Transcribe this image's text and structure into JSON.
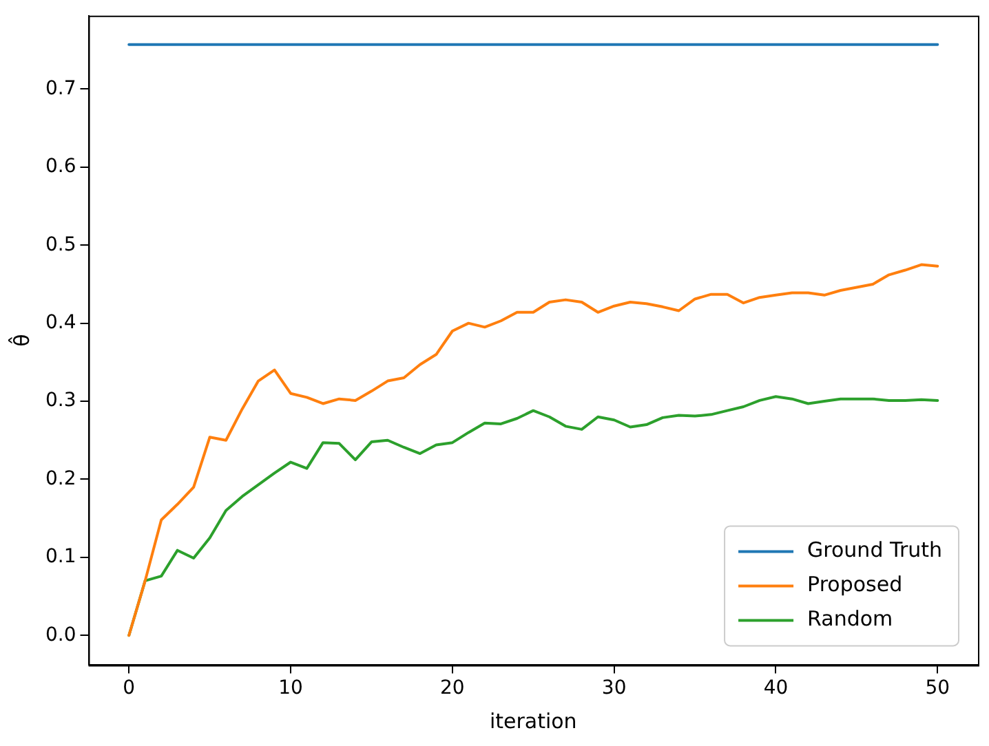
{
  "chart_data": {
    "type": "line",
    "xlabel": "iteration",
    "ylabel": "θ̂",
    "xlim": [
      -2.5,
      52.5
    ],
    "ylim": [
      -0.038,
      0.794
    ],
    "xticks": [
      0,
      10,
      20,
      30,
      40,
      50
    ],
    "yticks": [
      {
        "value": 0,
        "label": "0.0"
      },
      {
        "value": 0.1,
        "label": "0.1"
      },
      {
        "value": 0.2,
        "label": "0.2"
      },
      {
        "value": 0.3,
        "label": "0.3"
      },
      {
        "value": 0.4,
        "label": "0.4"
      },
      {
        "value": 0.5,
        "label": "0.5"
      },
      {
        "value": 0.6,
        "label": "0.6"
      },
      {
        "value": 0.7,
        "label": "0.7"
      }
    ],
    "grid": false,
    "legend": "bottom right",
    "marker": "none",
    "line_style": "solid",
    "x": [
      0,
      1,
      2,
      3,
      4,
      5,
      6,
      7,
      8,
      9,
      10,
      11,
      12,
      13,
      14,
      15,
      16,
      17,
      18,
      19,
      20,
      21,
      22,
      23,
      24,
      25,
      26,
      27,
      28,
      29,
      30,
      31,
      32,
      33,
      34,
      35,
      36,
      37,
      38,
      39,
      40,
      41,
      42,
      43,
      44,
      45,
      46,
      47,
      48,
      49,
      50
    ],
    "series": [
      {
        "name": "Ground Truth",
        "color": "#1f77b4",
        "x": [
          0,
          50
        ],
        "values": [
          0.757,
          0.757
        ]
      },
      {
        "name": "Proposed",
        "color": "#ff7f0e",
        "values": [
          0,
          0.07,
          0.148,
          0.168,
          0.19,
          0.254,
          0.25,
          0.29,
          0.326,
          0.34,
          0.31,
          0.305,
          0.297,
          0.303,
          0.301,
          0.313,
          0.326,
          0.33,
          0.347,
          0.36,
          0.39,
          0.4,
          0.395,
          0.403,
          0.414,
          0.414,
          0.427,
          0.43,
          0.427,
          0.414,
          0.422,
          0.427,
          0.425,
          0.421,
          0.416,
          0.431,
          0.437,
          0.437,
          0.426,
          0.433,
          0.436,
          0.439,
          0.439,
          0.436,
          0.442,
          0.446,
          0.45,
          0.462,
          0.468,
          0.475,
          0.473
        ]
      },
      {
        "name": "Random",
        "color": "#2ca02c",
        "values": [
          0,
          0.07,
          0.076,
          0.109,
          0.099,
          0.125,
          0.16,
          0.178,
          0.193,
          0.208,
          0.222,
          0.214,
          0.247,
          0.246,
          0.225,
          0.248,
          0.25,
          0.241,
          0.233,
          0.244,
          0.247,
          0.26,
          0.272,
          0.271,
          0.278,
          0.288,
          0.28,
          0.268,
          0.264,
          0.28,
          0.276,
          0.267,
          0.27,
          0.279,
          0.282,
          0.281,
          0.283,
          0.288,
          0.293,
          0.301,
          0.306,
          0.303,
          0.297,
          0.3,
          0.303,
          0.303,
          0.303,
          0.301,
          0.301,
          0.302,
          0.301
        ]
      }
    ]
  }
}
